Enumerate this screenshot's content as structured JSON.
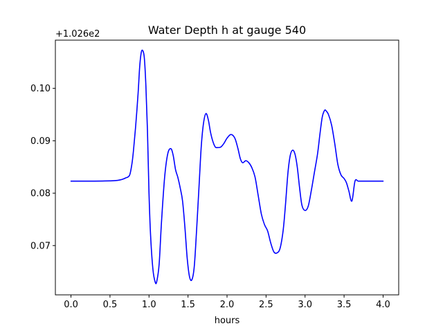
{
  "chart_data": {
    "type": "line",
    "title": "Water Depth h at gauge 540",
    "xlabel": "hours",
    "ylabel": "",
    "y_offset_label": "+1.026e2",
    "xlim": [
      -0.2,
      4.2
    ],
    "ylim": [
      0.0606,
      0.1092
    ],
    "grid": false,
    "x_ticks": [
      0.0,
      0.5,
      1.0,
      1.5,
      2.0,
      2.5,
      3.0,
      3.5,
      4.0
    ],
    "x_tick_labels": [
      "0.0",
      "0.5",
      "1.0",
      "1.5",
      "2.0",
      "2.5",
      "3.0",
      "3.5",
      "4.0"
    ],
    "y_ticks": [
      0.07,
      0.08,
      0.09,
      0.1
    ],
    "y_tick_labels": [
      "0.07",
      "0.08",
      "0.09",
      "0.10"
    ],
    "series": [
      {
        "color": "#0000ff",
        "x": [
          0.0,
          0.1,
          0.2,
          0.3,
          0.4,
          0.5,
          0.55,
          0.6,
          0.65,
          0.7,
          0.75,
          0.78,
          0.8,
          0.83,
          0.86,
          0.88,
          0.9,
          0.92,
          0.94,
          0.96,
          0.98,
          1.0,
          1.02,
          1.05,
          1.08,
          1.1,
          1.13,
          1.16,
          1.2,
          1.24,
          1.28,
          1.31,
          1.34,
          1.37,
          1.4,
          1.43,
          1.46,
          1.49,
          1.52,
          1.55,
          1.58,
          1.61,
          1.64,
          1.67,
          1.7,
          1.73,
          1.76,
          1.79,
          1.82,
          1.85,
          1.88,
          1.92,
          1.96,
          2.0,
          2.05,
          2.1,
          2.14,
          2.17,
          2.2,
          2.24,
          2.28,
          2.32,
          2.36,
          2.4,
          2.44,
          2.48,
          2.52,
          2.56,
          2.6,
          2.64,
          2.68,
          2.72,
          2.75,
          2.78,
          2.81,
          2.84,
          2.87,
          2.9,
          2.93,
          2.96,
          3.0,
          3.04,
          3.08,
          3.12,
          3.16,
          3.19,
          3.22,
          3.25,
          3.27,
          3.3,
          3.34,
          3.38,
          3.42,
          3.46,
          3.5,
          3.53,
          3.56,
          3.6,
          3.64,
          3.68,
          3.72,
          3.76,
          3.8,
          3.84,
          3.88,
          3.92,
          3.96,
          4.0
        ],
        "values": [
          0.0823,
          0.0823,
          0.0823,
          0.0823,
          0.08232,
          0.08235,
          0.08238,
          0.08245,
          0.0826,
          0.0829,
          0.0834,
          0.0855,
          0.088,
          0.093,
          0.099,
          0.104,
          0.1068,
          0.1072,
          0.1058,
          0.1005,
          0.092,
          0.08,
          0.072,
          0.0655,
          0.063,
          0.0632,
          0.0665,
          0.0745,
          0.083,
          0.0875,
          0.0885,
          0.0872,
          0.0845,
          0.083,
          0.081,
          0.0785,
          0.0735,
          0.0675,
          0.064,
          0.0635,
          0.066,
          0.073,
          0.081,
          0.089,
          0.0935,
          0.0952,
          0.094,
          0.0915,
          0.0898,
          0.0888,
          0.0887,
          0.0888,
          0.0895,
          0.0905,
          0.0912,
          0.0905,
          0.0885,
          0.0866,
          0.0858,
          0.0862,
          0.0858,
          0.0848,
          0.083,
          0.0795,
          0.076,
          0.074,
          0.0728,
          0.0705,
          0.0688,
          0.0686,
          0.0695,
          0.073,
          0.078,
          0.0838,
          0.0872,
          0.0882,
          0.0875,
          0.085,
          0.081,
          0.0777,
          0.0767,
          0.0775,
          0.0805,
          0.084,
          0.0875,
          0.0912,
          0.0945,
          0.0958,
          0.0957,
          0.095,
          0.093,
          0.0895,
          0.0855,
          0.0835,
          0.0828,
          0.082,
          0.0805,
          0.0785,
          0.0823,
          0.0823,
          0.0823,
          0.0823,
          0.0823,
          0.0823,
          0.0823,
          0.0823,
          0.0823,
          0.0823
        ]
      }
    ]
  }
}
